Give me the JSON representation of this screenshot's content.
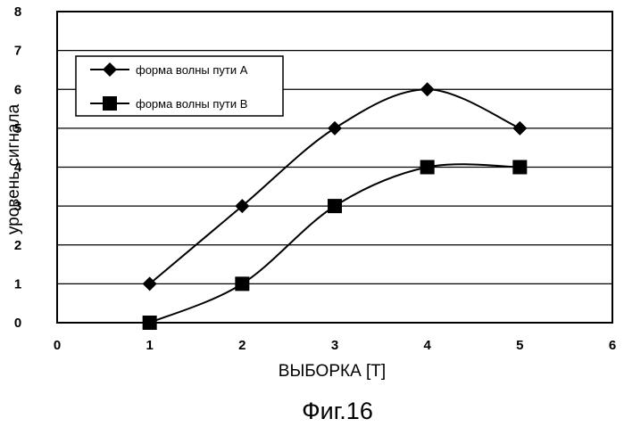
{
  "chart_data": {
    "type": "line",
    "xlabel": "ВЫБОРКА [T]",
    "ylabel": "уровень сигнала",
    "caption": "Фиг.16",
    "xlim": [
      0,
      6
    ],
    "ylim": [
      0,
      8
    ],
    "xticks": [
      "0",
      "1",
      "2",
      "3",
      "4",
      "5",
      "6"
    ],
    "yticks": [
      "0",
      "1",
      "2",
      "3",
      "4",
      "5",
      "6",
      "7",
      "8"
    ],
    "grid": "horizontal",
    "legend_position": "top-left",
    "smooth": true,
    "series": [
      {
        "name": "форма волны пути A",
        "marker": "diamond",
        "x": [
          1,
          2,
          3,
          4,
          5
        ],
        "y": [
          1,
          3,
          5,
          6,
          5
        ]
      },
      {
        "name": "форма волны пути B",
        "marker": "square",
        "x": [
          1,
          2,
          3,
          4,
          5
        ],
        "y": [
          0,
          1,
          3,
          4,
          4
        ]
      }
    ]
  }
}
